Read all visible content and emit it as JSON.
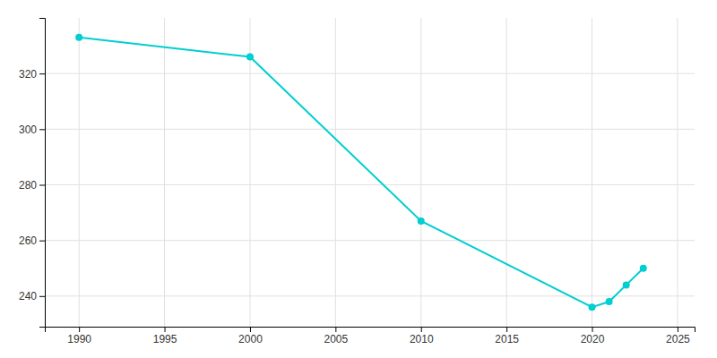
{
  "chart_data": {
    "type": "line",
    "x": [
      1990,
      2000,
      2010,
      2020,
      2021,
      2022,
      2023
    ],
    "values": [
      333,
      326,
      267,
      236,
      238,
      244,
      250
    ],
    "color": "#00CED1",
    "marker": "circle",
    "line_style": "solid",
    "xlim": [
      1988,
      2026
    ],
    "xticks": [
      1990,
      1995,
      2000,
      2005,
      2010,
      2015,
      2020,
      2025
    ],
    "ylim": [
      229,
      340
    ],
    "yticks": [
      240,
      260,
      280,
      300,
      320
    ],
    "grid": true
  }
}
